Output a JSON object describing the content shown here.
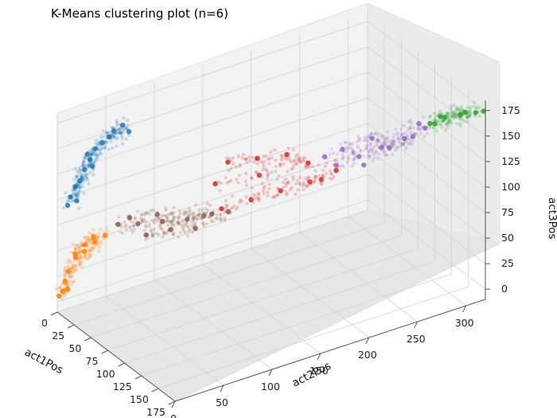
{
  "chart_data": {
    "type": "scatter",
    "projection": "3d",
    "title": "K-Means clustering plot (n=6)",
    "xlabel": "act1Pos",
    "ylabel": "act2Pos",
    "zlabel": "act3Pos",
    "x_ticks": [
      "0",
      "25",
      "50",
      "75",
      "100",
      "125",
      "150",
      "175"
    ],
    "y_ticks": [
      "0",
      "50",
      "100",
      "150",
      "200",
      "250",
      "300"
    ],
    "z_ticks": [
      "0",
      "25",
      "50",
      "75",
      "100",
      "125",
      "150",
      "175"
    ],
    "xlim": [
      0,
      175
    ],
    "ylim": [
      0,
      320
    ],
    "zlim": [
      -10,
      185
    ],
    "grid": true,
    "legend": "none",
    "colors": {
      "cluster_0": "#1f77b4",
      "cluster_1": "#ff7f0e",
      "cluster_2": "#2ca02c",
      "cluster_3": "#d62728",
      "cluster_4": "#9467bd",
      "cluster_5": "#8c564b"
    },
    "series": [
      {
        "color": "#1f77b4",
        "points": [
          [
            3,
            18,
            95
          ],
          [
            5,
            20,
            115
          ],
          [
            8,
            28,
            135
          ],
          [
            12,
            38,
            150
          ],
          [
            15,
            48,
            160
          ],
          [
            18,
            55,
            165
          ],
          [
            2,
            12,
            100
          ],
          [
            6,
            24,
            125
          ],
          [
            10,
            32,
            145
          ],
          [
            4,
            16,
            110
          ],
          [
            14,
            44,
            155
          ],
          [
            20,
            60,
            158
          ],
          [
            7,
            26,
            140
          ],
          [
            1,
            10,
            92
          ],
          [
            9,
            30,
            128
          ]
        ]
      },
      {
        "color": "#ff7f0e",
        "points": [
          [
            0,
            2,
            5
          ],
          [
            5,
            8,
            30
          ],
          [
            10,
            12,
            45
          ],
          [
            18,
            16,
            60
          ],
          [
            25,
            20,
            70
          ],
          [
            35,
            25,
            75
          ],
          [
            3,
            6,
            20
          ],
          [
            12,
            10,
            50
          ],
          [
            20,
            14,
            55
          ],
          [
            30,
            18,
            68
          ],
          [
            8,
            5,
            15
          ],
          [
            2,
            4,
            10
          ]
        ]
      },
      {
        "color": "#8c564b",
        "points": [
          [
            40,
            35,
            85
          ],
          [
            55,
            45,
            90
          ],
          [
            70,
            60,
            95
          ],
          [
            85,
            75,
            100
          ],
          [
            100,
            90,
            108
          ],
          [
            60,
            50,
            80
          ],
          [
            75,
            65,
            88
          ],
          [
            90,
            80,
            92
          ],
          [
            110,
            100,
            112
          ],
          [
            50,
            40,
            95
          ],
          [
            95,
            85,
            105
          ],
          [
            65,
            58,
            100
          ]
        ]
      },
      {
        "color": "#d62728",
        "points": [
          [
            100,
            100,
            110
          ],
          [
            115,
            120,
            120
          ],
          [
            130,
            140,
            130
          ],
          [
            145,
            160,
            140
          ],
          [
            155,
            180,
            150
          ],
          [
            95,
            110,
            150
          ],
          [
            110,
            130,
            155
          ],
          [
            125,
            150,
            160
          ],
          [
            135,
            165,
            152
          ],
          [
            105,
            90,
            140
          ],
          [
            140,
            175,
            135
          ],
          [
            120,
            125,
            145
          ]
        ]
      },
      {
        "color": "#9467bd",
        "points": [
          [
            155,
            180,
            155
          ],
          [
            160,
            200,
            160
          ],
          [
            165,
            220,
            165
          ],
          [
            170,
            240,
            170
          ],
          [
            172,
            260,
            175
          ],
          [
            150,
            190,
            165
          ],
          [
            158,
            215,
            172
          ],
          [
            162,
            230,
            160
          ],
          [
            168,
            250,
            168
          ],
          [
            145,
            175,
            160
          ],
          [
            170,
            255,
            180
          ],
          [
            160,
            205,
            150
          ]
        ]
      },
      {
        "color": "#2ca02c",
        "points": [
          [
            172,
            265,
            178
          ],
          [
            173,
            280,
            180
          ],
          [
            174,
            295,
            178
          ],
          [
            175,
            310,
            176
          ],
          [
            173,
            275,
            182
          ],
          [
            174,
            300,
            179
          ],
          [
            172,
            270,
            176
          ],
          [
            175,
            318,
            175
          ]
        ]
      }
    ]
  }
}
